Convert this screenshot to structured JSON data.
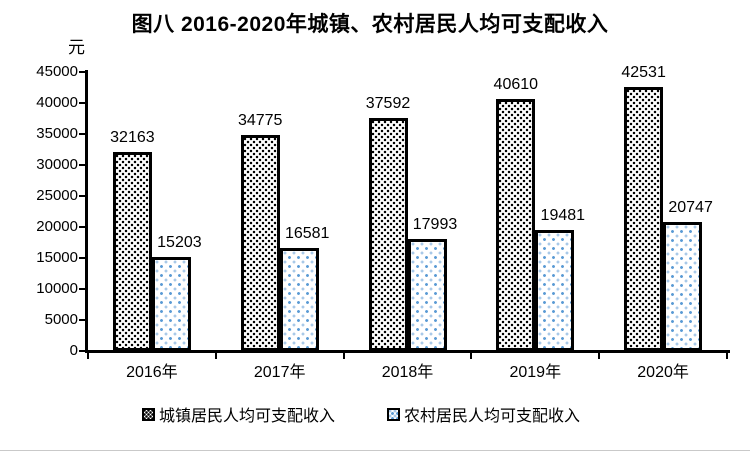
{
  "chart_data": {
    "type": "bar",
    "title": "图八 2016-2020年城镇、农村居民人均可支配收入",
    "unit_label": "元",
    "categories": [
      "2016年",
      "2017年",
      "2018年",
      "2019年",
      "2020年"
    ],
    "series": [
      {
        "name": "城镇居民人均可支配收入",
        "pattern": "urban",
        "dot_color": "#000000",
        "values": [
          32163,
          34775,
          37592,
          40610,
          42531
        ]
      },
      {
        "name": "农村居民人均可支配收入",
        "pattern": "rural",
        "dot_color": "#5B9BD5",
        "values": [
          15203,
          16581,
          17993,
          19481,
          20747
        ]
      }
    ],
    "ylim": [
      0,
      45000
    ],
    "ytick_step": 5000,
    "yticks": [
      0,
      5000,
      10000,
      15000,
      20000,
      25000,
      30000,
      35000,
      40000,
      45000
    ],
    "grid": false,
    "legend_position": "bottom",
    "axis_color": "#000000",
    "value_labels_shown": true
  }
}
